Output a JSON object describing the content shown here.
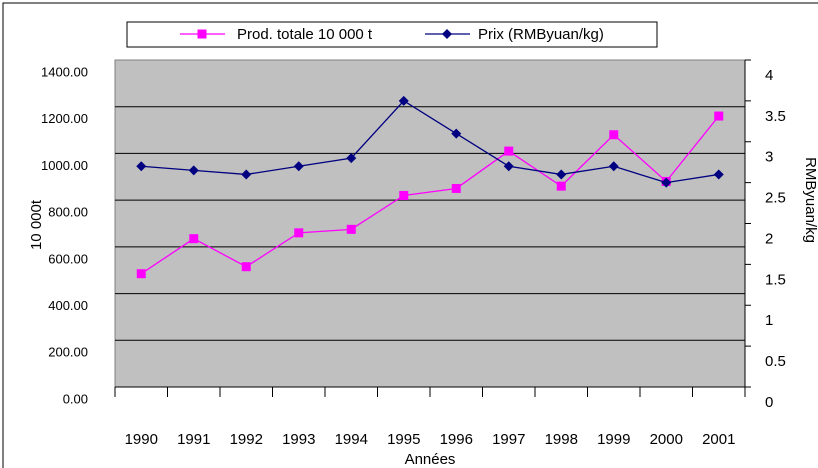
{
  "chart_data": {
    "type": "line",
    "xlabel": "Années",
    "ylabel": "10 000t",
    "y2label": "RMByuan/kg",
    "categories": [
      "1990",
      "1991",
      "1992",
      "1993",
      "1994",
      "1995",
      "1996",
      "1997",
      "1998",
      "1999",
      "2000",
      "2001"
    ],
    "series": [
      {
        "name": "Prod. totale 10 000 t",
        "color": "#ff00ff",
        "marker": "square",
        "values": [
          485,
          635,
          515,
          660,
          675,
          820,
          850,
          1010,
          860,
          1080,
          880,
          1160
        ]
      },
      {
        "name": "Prix (RMByuan/kg)",
        "color": "#000080",
        "marker": "diamond",
        "axis": "y2",
        "values": [
          2.7,
          2.65,
          2.6,
          2.7,
          2.8,
          3.5,
          3.1,
          2.7,
          2.6,
          2.7,
          2.5,
          2.6
        ]
      }
    ],
    "ylim": [
      0,
      1400
    ],
    "yticks": [
      {
        "value": 0,
        "label": "0.00"
      },
      {
        "value": 200,
        "label": "200.00"
      },
      {
        "value": 400,
        "label": "400.00"
      },
      {
        "value": 600,
        "label": "600.00"
      },
      {
        "value": 800,
        "label": "800.00"
      },
      {
        "value": 1000,
        "label": "1000.00"
      },
      {
        "value": 1200,
        "label": "1200.00"
      },
      {
        "value": 1400,
        "label": "1400.00"
      }
    ],
    "y2lim": [
      0,
      4
    ],
    "y2ticks": [
      0,
      0.5,
      1,
      1.5,
      2,
      2.5,
      3,
      3.5,
      4
    ],
    "grid": true,
    "legend": "top"
  }
}
